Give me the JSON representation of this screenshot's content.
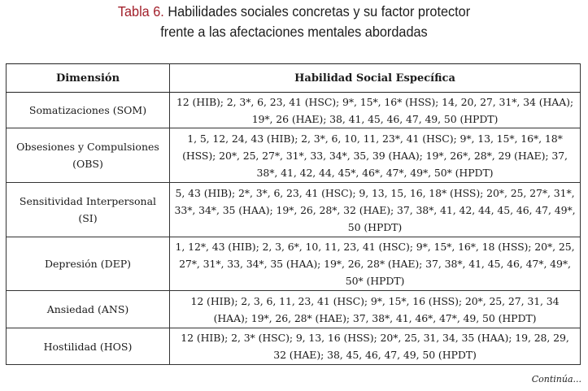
{
  "title": {
    "label": "Tabla 6.",
    "line1": "Habilidades sociales concretas y su factor protector",
    "line2": "frente a las afectaciones mentales abordadas"
  },
  "table": {
    "headers": [
      "Dimensión",
      "Habilidad Social Específica"
    ],
    "rows": [
      {
        "dimension": "Somatizaciones (SOM)",
        "skills": "12 (HIB); 2, 3*, 6, 23, 41 (HSC); 9*, 15*, 16* (HSS); 14, 20, 27, 31*, 34 (HAA); 19*, 26 (HAE); 38, 41, 45, 46, 47, 49, 50 (HPDT)"
      },
      {
        "dimension": "Obsesiones y Compulsiones (OBS)",
        "skills": "1, 5, 12, 24, 43 (HIB); 2, 3*, 6, 10, 11, 23*, 41 (HSC); 9*, 13, 15*, 16*, 18* (HSS); 20*, 25, 27*, 31*, 33, 34*, 35, 39 (HAA); 19*, 26*, 28*, 29 (HAE); 37, 38*, 41, 42, 44, 45*, 46*, 47*, 49*, 50* (HPDT)"
      },
      {
        "dimension": "Sensitividad Interpersonal (SI)",
        "skills": "5, 43 (HIB); 2*, 3*, 6, 23, 41 (HSC); 9, 13, 15, 16, 18* (HSS); 20*, 25, 27*, 31*, 33*, 34*, 35 (HAA); 19*, 26, 28*, 32 (HAE); 37, 38*, 41, 42, 44, 45, 46, 47, 49*, 50 (HPDT)"
      },
      {
        "dimension": "Depresión (DEP)",
        "skills": "1, 12*, 43 (HIB); 2, 3, 6*, 10, 11, 23, 41 (HSC); 9*, 15*, 16*, 18 (HSS); 20*, 25, 27*, 31*, 33, 34*, 35 (HAA); 19*, 26, 28* (HAE); 37, 38*, 41, 45, 46, 47*, 49*, 50* (HPDT)"
      },
      {
        "dimension": "Ansiedad (ANS)",
        "skills": "12 (HIB); 2, 3, 6, 11, 23, 41 (HSC); 9*, 15*, 16 (HSS); 20*, 25, 27, 31, 34 (HAA); 19*, 26, 28* (HAE); 37, 38*, 41, 46*, 47*, 49, 50 (HPDT)"
      },
      {
        "dimension": "Hostilidad (HOS)",
        "skills": "12 (HIB); 2, 3* (HSC); 9, 13, 16 (HSS); 20*, 25, 31, 34, 35 (HAA); 19, 28, 29, 32 (HAE); 38, 45, 46, 47, 49, 50 (HPDT)"
      }
    ]
  },
  "footer": {
    "continua": "Continúa..."
  }
}
